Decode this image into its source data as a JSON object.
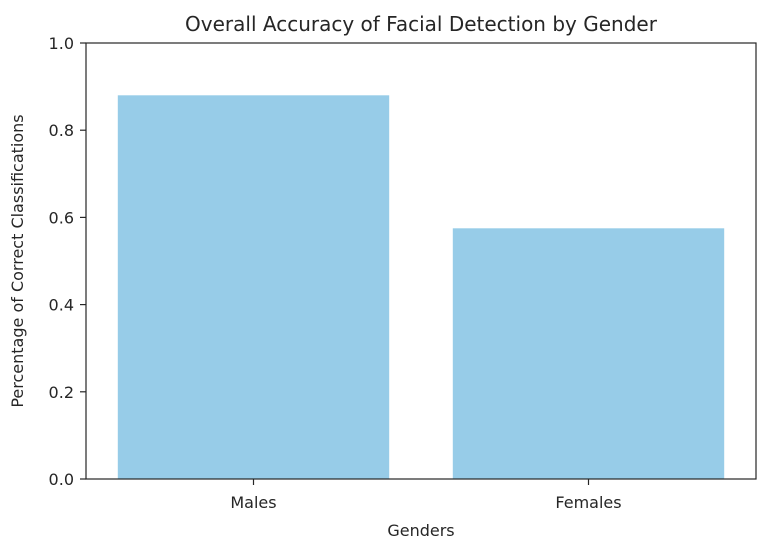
{
  "chart_data": {
    "type": "bar",
    "title": "Overall Accuracy of Facial Detection by Gender",
    "xlabel": "Genders",
    "ylabel": "Percentage of Correct Classifications",
    "categories": [
      "Males",
      "Females"
    ],
    "values": [
      0.88,
      0.575
    ],
    "ylim": [
      0,
      1.0
    ],
    "yticks": [
      "0.0",
      "0.2",
      "0.4",
      "0.6",
      "0.8",
      "1.0"
    ],
    "grid": false,
    "bar_color": "#97cce8"
  }
}
